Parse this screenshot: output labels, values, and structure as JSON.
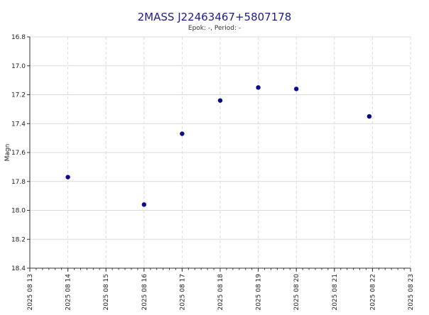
{
  "chart_data": {
    "type": "scatter",
    "title": "2MASS J22463467+5807178",
    "subtitle": "Epok: -, Period: -",
    "xlabel": "",
    "ylabel": "Magn",
    "x_axis_type": "date",
    "xlim": [
      "2025-08-13",
      "2025-08-23"
    ],
    "ylim": [
      16.8,
      18.4
    ],
    "y_inverted": true,
    "y_ticks": [
      "16.8",
      "17.0",
      "17.2",
      "17.4",
      "17.6",
      "17.8",
      "18.0",
      "18.2",
      "18.4"
    ],
    "x_ticks": [
      "2025 08 13",
      "2025 08 14",
      "2025 08 15",
      "2025 08 16",
      "2025 08 17",
      "2025 08 18",
      "2025 08 19",
      "2025 08 20",
      "2025 08 21",
      "2025 08 22",
      "2025 08 23"
    ],
    "grid": true,
    "legend": "none",
    "colors": {
      "marker": "#0a0a8c",
      "grid": "#dcdcdc",
      "title": "#1c1c8c"
    },
    "series": [
      {
        "points": [
          {
            "x": "2025-08-14T00:00",
            "y": 17.77
          },
          {
            "x": "2025-08-16T00:00",
            "y": 17.96
          },
          {
            "x": "2025-08-17T00:00",
            "y": 17.47
          },
          {
            "x": "2025-08-18T00:00",
            "y": 17.24
          },
          {
            "x": "2025-08-19T00:00",
            "y": 17.15
          },
          {
            "x": "2025-08-20T00:00",
            "y": 17.16
          },
          {
            "x": "2025-08-21T22:00",
            "y": 17.35
          }
        ]
      }
    ]
  }
}
